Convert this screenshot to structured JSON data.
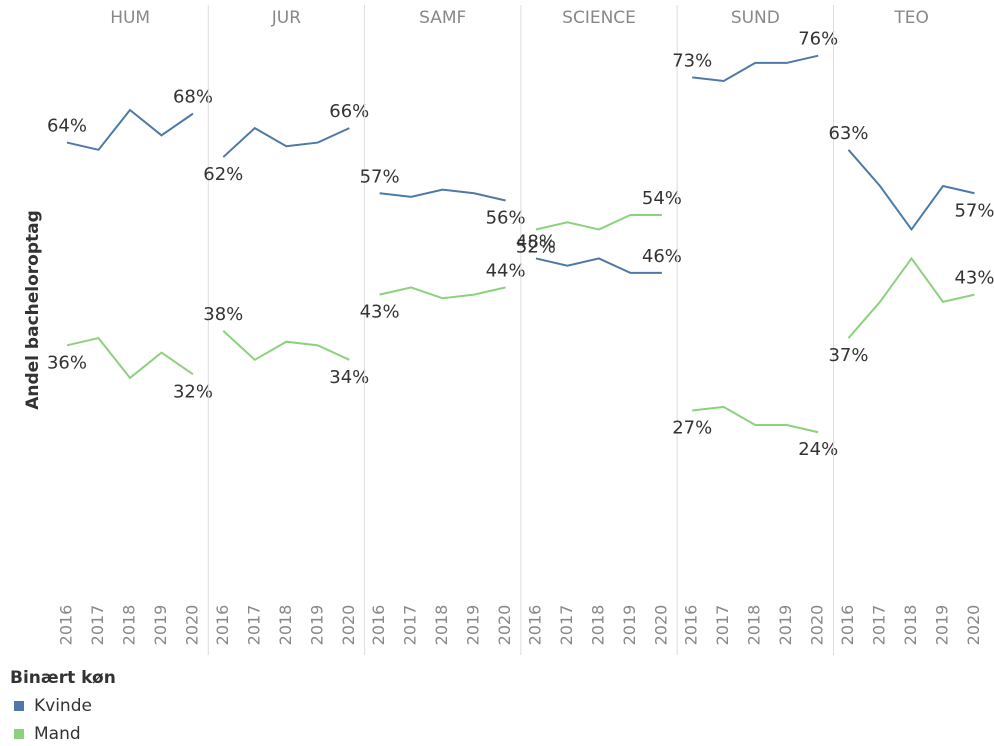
{
  "chart_data": {
    "type": "line",
    "ylabel": "Andel bacheloroptag",
    "ylim": [
      0,
      83
    ],
    "legend_title": "Binært køn",
    "legend": [
      {
        "name": "Kvinde",
        "color": "#4e79a7"
      },
      {
        "name": "Mand",
        "color": "#8cd17d"
      }
    ],
    "panels": [
      {
        "title": "HUM",
        "categories": [
          "2016",
          "2017",
          "2018",
          "2019",
          "2020"
        ],
        "series": [
          {
            "values": [
              64,
              63,
              68.5,
              65,
              68
            ],
            "value_labels": [
              "64%",
              null,
              null,
              null,
              "68%"
            ]
          },
          {
            "values": [
              36,
              37,
              31.5,
              35,
              32
            ],
            "value_labels": [
              "36%",
              null,
              null,
              null,
              "32%"
            ]
          }
        ]
      },
      {
        "title": "JUR",
        "categories": [
          "2016",
          "2017",
          "2018",
          "2019",
          "2020"
        ],
        "series": [
          {
            "values": [
              62,
              66,
              63.5,
              64,
              66
            ],
            "value_labels": [
              "62%",
              null,
              null,
              null,
              "66%"
            ]
          },
          {
            "values": [
              38,
              34,
              36.5,
              36,
              34
            ],
            "value_labels": [
              "38%",
              null,
              null,
              null,
              "34%"
            ]
          }
        ]
      },
      {
        "title": "SAMF",
        "categories": [
          "2016",
          "2017",
          "2018",
          "2019",
          "2020"
        ],
        "series": [
          {
            "values": [
              57,
              56.5,
              57.5,
              57,
              56
            ],
            "value_labels": [
              "57%",
              null,
              null,
              null,
              "56%"
            ]
          },
          {
            "values": [
              43,
              44,
              42.5,
              43,
              44
            ],
            "value_labels": [
              "43%",
              null,
              null,
              null,
              "44%"
            ]
          }
        ]
      },
      {
        "title": "SCIENCE",
        "categories": [
          "2016",
          "2017",
          "2018",
          "2019",
          "2020"
        ],
        "series": [
          {
            "values": [
              48,
              47,
              48,
              46,
              46
            ],
            "value_labels": [
              "48%",
              null,
              null,
              null,
              "46%"
            ]
          },
          {
            "values": [
              52,
              53,
              52,
              54,
              54
            ],
            "value_labels": [
              "52%",
              null,
              null,
              null,
              "54%"
            ]
          }
        ]
      },
      {
        "title": "SUND",
        "categories": [
          "2016",
          "2017",
          "2018",
          "2019",
          "2020"
        ],
        "series": [
          {
            "values": [
              73,
              72.5,
              75,
              75,
              76
            ],
            "value_labels": [
              "73%",
              null,
              null,
              null,
              "76%"
            ]
          },
          {
            "values": [
              27,
              27.5,
              25,
              25,
              24
            ],
            "value_labels": [
              "27%",
              null,
              null,
              null,
              "24%"
            ]
          }
        ]
      },
      {
        "title": "TEO",
        "categories": [
          "2016",
          "2017",
          "2018",
          "2019",
          "2020"
        ],
        "series": [
          {
            "values": [
              63,
              58,
              52,
              58,
              57
            ],
            "value_labels": [
              "63%",
              null,
              null,
              null,
              "57%"
            ]
          },
          {
            "values": [
              37,
              42,
              48,
              42,
              43
            ],
            "value_labels": [
              "37%",
              null,
              null,
              null,
              "43%"
            ]
          }
        ]
      }
    ]
  }
}
